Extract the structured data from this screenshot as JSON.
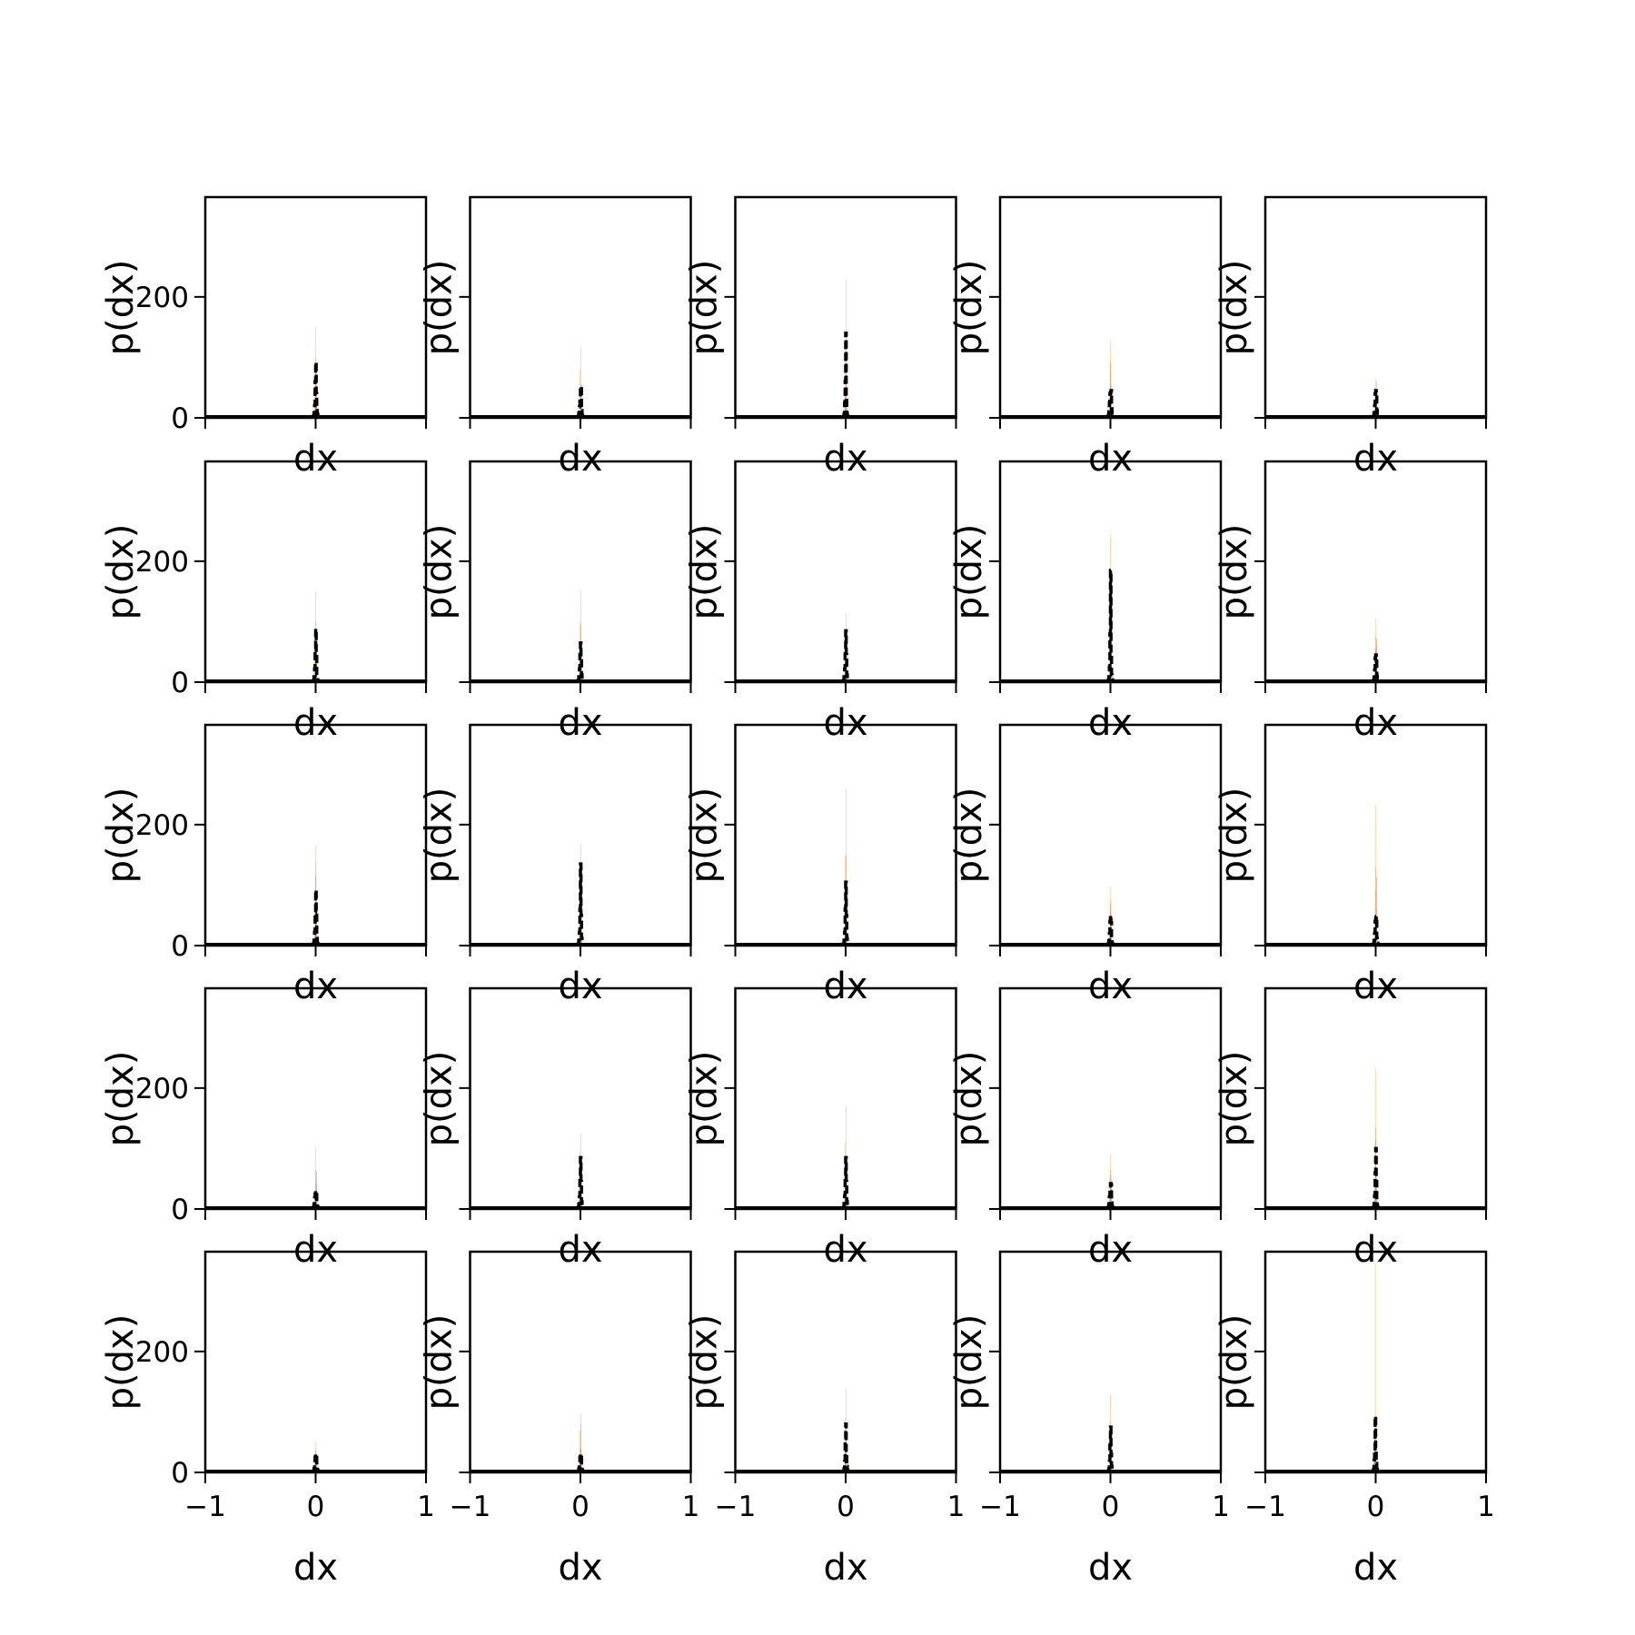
{
  "colors": {
    "series_a": "#1f77b4",
    "series_b": "#ff7f0e",
    "outline": "#000000",
    "frame": "#000000",
    "background": "#ffffff"
  },
  "chart_data": {
    "type": "bar",
    "layout": "grid",
    "rows": 5,
    "cols": 5,
    "xlabel": "dx",
    "ylabel": "p(dx)",
    "xlim": [
      -1,
      1
    ],
    "ylim": [
      0,
      365
    ],
    "xticks": [
      -1,
      0,
      1
    ],
    "xtick_labels": [
      "−1",
      "0",
      "1"
    ],
    "yticks": [
      0,
      200
    ],
    "ytick_labels": [
      "0",
      "200"
    ],
    "grid": false,
    "bin_edges": [
      -0.02,
      -0.015,
      -0.01,
      -0.005,
      0.0,
      0.005,
      0.01,
      0.015,
      0.02,
      0.025
    ],
    "panels": [
      {
        "a": [
          2,
          5,
          14,
          40,
          75,
          30,
          12,
          5,
          2
        ],
        "b": [
          5,
          15,
          45,
          100,
          150,
          60,
          20,
          6,
          2
        ],
        "c": [
          3,
          8,
          20,
          60,
          92,
          40,
          15,
          6,
          2
        ]
      },
      {
        "a": [
          2,
          5,
          12,
          30,
          45,
          55,
          15,
          5,
          2
        ],
        "b": [
          4,
          12,
          35,
          80,
          118,
          55,
          15,
          4,
          1
        ],
        "c": [
          3,
          8,
          18,
          35,
          50,
          52,
          12,
          4,
          1
        ]
      },
      {
        "a": [
          1,
          4,
          15,
          45,
          95,
          30,
          8,
          3,
          1
        ],
        "b": [
          3,
          10,
          40,
          120,
          228,
          70,
          15,
          4,
          1
        ],
        "c": [
          2,
          6,
          25,
          60,
          140,
          35,
          8,
          3,
          1
        ]
      },
      {
        "a": [
          3,
          8,
          20,
          50,
          88,
          30,
          20,
          6,
          2
        ],
        "b": [
          5,
          14,
          40,
          95,
          128,
          55,
          18,
          5,
          2
        ],
        "c": [
          4,
          10,
          25,
          40,
          42,
          45,
          15,
          5,
          2
        ]
      },
      {
        "a": [
          2,
          6,
          15,
          35,
          45,
          40,
          12,
          4,
          1
        ],
        "b": [
          3,
          10,
          25,
          50,
          65,
          60,
          14,
          4,
          1
        ],
        "c": [
          3,
          8,
          20,
          40,
          45,
          42,
          12,
          4,
          1
        ]
      },
      {
        "a": [
          2,
          6,
          16,
          45,
          80,
          40,
          12,
          4,
          1
        ],
        "b": [
          4,
          14,
          42,
          100,
          150,
          62,
          18,
          5,
          2
        ],
        "c": [
          3,
          9,
          22,
          55,
          88,
          45,
          12,
          4,
          1
        ]
      },
      {
        "a": [
          2,
          6,
          16,
          45,
          95,
          40,
          12,
          4,
          1
        ],
        "b": [
          4,
          14,
          42,
          100,
          152,
          62,
          18,
          5,
          2
        ],
        "c": [
          3,
          9,
          22,
          45,
          65,
          42,
          12,
          4,
          1
        ]
      },
      {
        "a": [
          2,
          6,
          16,
          45,
          80,
          40,
          12,
          4,
          1
        ],
        "b": [
          4,
          12,
          35,
          80,
          115,
          50,
          15,
          4,
          1
        ],
        "c": [
          3,
          9,
          22,
          55,
          85,
          45,
          12,
          4,
          1
        ]
      },
      {
        "a": [
          2,
          6,
          20,
          70,
          150,
          40,
          12,
          4,
          1
        ],
        "b": [
          4,
          14,
          45,
          140,
          245,
          70,
          18,
          5,
          2
        ],
        "c": [
          3,
          9,
          25,
          80,
          185,
          45,
          12,
          4,
          1
        ]
      },
      {
        "a": [
          2,
          6,
          16,
          35,
          55,
          72,
          14,
          4,
          1
        ],
        "b": [
          3,
          10,
          30,
          75,
          105,
          60,
          15,
          4,
          1
        ],
        "c": [
          3,
          8,
          20,
          40,
          45,
          35,
          10,
          4,
          1
        ]
      },
      {
        "a": [
          2,
          6,
          16,
          60,
          138,
          40,
          12,
          4,
          1
        ],
        "b": [
          4,
          14,
          45,
          115,
          165,
          62,
          18,
          5,
          2
        ],
        "c": [
          3,
          9,
          22,
          55,
          92,
          50,
          12,
          4,
          1
        ]
      },
      {
        "a": [
          2,
          6,
          16,
          55,
          120,
          40,
          12,
          4,
          1
        ],
        "b": [
          4,
          14,
          45,
          115,
          168,
          62,
          18,
          5,
          2
        ],
        "c": [
          3,
          9,
          22,
          60,
          135,
          50,
          12,
          4,
          1
        ]
      },
      {
        "a": [
          2,
          6,
          16,
          55,
          148,
          40,
          12,
          4,
          1
        ],
        "b": [
          4,
          14,
          48,
          150,
          258,
          70,
          18,
          5,
          2
        ],
        "c": [
          3,
          9,
          22,
          60,
          105,
          50,
          12,
          4,
          1
        ]
      },
      {
        "a": [
          2,
          6,
          16,
          45,
          75,
          40,
          12,
          4,
          1
        ],
        "b": [
          3,
          10,
          28,
          68,
          97,
          55,
          15,
          4,
          1
        ],
        "c": [
          3,
          8,
          20,
          40,
          50,
          38,
          10,
          4,
          1
        ]
      },
      {
        "a": [
          2,
          6,
          16,
          50,
          90,
          112,
          14,
          4,
          1
        ],
        "b": [
          4,
          14,
          45,
          130,
          233,
          60,
          15,
          4,
          1
        ],
        "c": [
          3,
          8,
          20,
          40,
          45,
          48,
          12,
          4,
          1
        ]
      },
      {
        "a": [
          2,
          6,
          16,
          30,
          40,
          62,
          20,
          6,
          2
        ],
        "b": [
          3,
          10,
          25,
          65,
          103,
          45,
          15,
          4,
          1
        ],
        "c": [
          3,
          8,
          18,
          25,
          30,
          28,
          12,
          4,
          1
        ]
      },
      {
        "a": [
          2,
          6,
          16,
          45,
          70,
          50,
          12,
          4,
          1
        ],
        "b": [
          4,
          14,
          42,
          95,
          125,
          55,
          15,
          4,
          1
        ],
        "c": [
          3,
          8,
          20,
          50,
          85,
          45,
          12,
          4,
          1
        ]
      },
      {
        "a": [
          2,
          6,
          16,
          45,
          80,
          45,
          12,
          4,
          1
        ],
        "b": [
          4,
          14,
          42,
          110,
          170,
          60,
          15,
          4,
          1
        ],
        "c": [
          3,
          9,
          22,
          55,
          85,
          45,
          12,
          4,
          1
        ]
      },
      {
        "a": [
          2,
          6,
          16,
          40,
          57,
          45,
          12,
          4,
          1
        ],
        "b": [
          3,
          10,
          28,
          65,
          90,
          50,
          14,
          4,
          1
        ],
        "c": [
          3,
          8,
          20,
          35,
          42,
          40,
          10,
          4,
          1
        ]
      },
      {
        "a": [
          2,
          6,
          16,
          55,
          115,
          40,
          12,
          4,
          1
        ],
        "b": [
          4,
          14,
          45,
          135,
          232,
          60,
          15,
          4,
          1
        ],
        "c": [
          3,
          9,
          22,
          60,
          100,
          45,
          12,
          4,
          1
        ]
      },
      {
        "a": [
          2,
          5,
          14,
          25,
          35,
          30,
          10,
          4,
          1
        ],
        "b": [
          3,
          8,
          20,
          40,
          50,
          30,
          10,
          4,
          1
        ],
        "c": [
          2,
          6,
          15,
          25,
          30,
          25,
          10,
          4,
          1
        ]
      },
      {
        "a": [
          2,
          5,
          14,
          40,
          80,
          30,
          10,
          4,
          1
        ],
        "b": [
          3,
          10,
          28,
          70,
          97,
          40,
          12,
          4,
          1
        ],
        "c": [
          2,
          6,
          15,
          25,
          30,
          25,
          10,
          4,
          1
        ]
      },
      {
        "a": [
          2,
          5,
          14,
          45,
          80,
          30,
          10,
          4,
          1
        ],
        "b": [
          3,
          10,
          35,
          90,
          138,
          40,
          12,
          4,
          1
        ],
        "c": [
          2,
          6,
          18,
          50,
          80,
          30,
          10,
          4,
          1
        ]
      },
      {
        "a": [
          2,
          5,
          14,
          40,
          70,
          30,
          10,
          4,
          1
        ],
        "b": [
          3,
          10,
          35,
          85,
          128,
          40,
          12,
          4,
          1
        ],
        "c": [
          2,
          6,
          18,
          45,
          75,
          30,
          10,
          4,
          1
        ]
      },
      {
        "a": [
          15,
          40,
          72,
          30,
          15,
          8,
          4,
          2,
          1
        ],
        "b": [
          5,
          20,
          60,
          345,
          90,
          30,
          8,
          3,
          1
        ],
        "c": [
          5,
          20,
          30,
          93,
          40,
          15,
          5,
          2,
          1
        ]
      }
    ]
  }
}
